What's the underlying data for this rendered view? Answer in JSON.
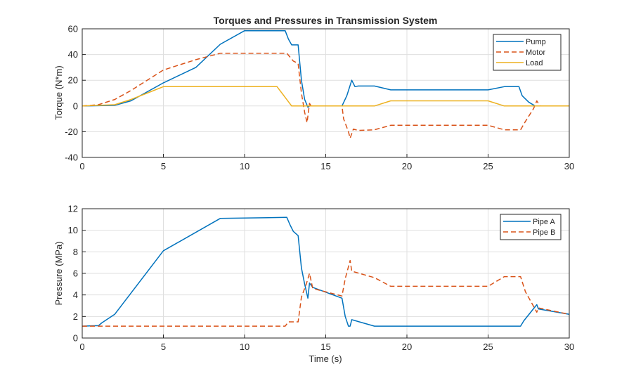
{
  "chart_data": [
    {
      "type": "line",
      "title": "Torques and Pressures in Transmission System",
      "xlabel": "",
      "ylabel": "Torque (N*m)",
      "xlim": [
        0,
        30
      ],
      "ylim": [
        -40,
        60
      ],
      "xticks": [
        0,
        5,
        10,
        15,
        20,
        25,
        30
      ],
      "yticks": [
        -40,
        -20,
        0,
        20,
        40,
        60
      ],
      "grid": true,
      "legend_position": "top-right",
      "series": [
        {
          "name": "Pump",
          "color": "#0072BD",
          "style": "solid",
          "x": [
            0,
            2,
            3,
            5,
            7,
            8.5,
            10,
            12.5,
            12.7,
            12.9,
            13.3,
            13.5,
            13.7,
            13.9,
            14,
            16,
            16.3,
            16.6,
            16.8,
            17,
            18,
            19,
            25,
            26,
            26.9,
            27.1,
            27.5,
            27.9,
            30
          ],
          "y": [
            0,
            0.5,
            4,
            18,
            30,
            48,
            58.5,
            58.5,
            52,
            47.5,
            47.5,
            20,
            5,
            -1,
            0,
            0,
            8,
            20,
            15,
            15.5,
            15.5,
            12.5,
            12.5,
            15,
            15,
            8,
            3,
            0,
            0
          ]
        },
        {
          "name": "Motor",
          "color": "#D95319",
          "style": "dashed",
          "x": [
            0,
            1,
            2,
            3,
            5,
            7,
            8.5,
            12.6,
            13,
            13.3,
            13.5,
            13.7,
            13.85,
            14,
            14.1,
            16,
            16.1,
            16.4,
            16.5,
            16.7,
            17,
            18,
            19,
            25,
            26,
            27,
            27.3,
            27.8,
            28,
            28.2,
            30
          ],
          "y": [
            0,
            1,
            5,
            12,
            28,
            36,
            41,
            41,
            35,
            33,
            10,
            -5,
            -13,
            2,
            0,
            0,
            -10,
            -20,
            -25,
            -18,
            -19,
            -18.5,
            -15,
            -15,
            -18.5,
            -18.5,
            -12,
            -2,
            4,
            0,
            0
          ]
        },
        {
          "name": "Load",
          "color": "#EDB120",
          "style": "solid",
          "x": [
            0,
            2,
            3,
            4,
            5,
            12,
            12.9,
            18,
            19,
            25,
            26,
            30
          ],
          "y": [
            0,
            1,
            5,
            10,
            15,
            15,
            0,
            0,
            4,
            4,
            0,
            0
          ]
        }
      ]
    },
    {
      "type": "line",
      "title": "",
      "xlabel": "Time (s)",
      "ylabel": "Pressure (MPa)",
      "xlim": [
        0,
        30
      ],
      "ylim": [
        0,
        12
      ],
      "xticks": [
        0,
        5,
        10,
        15,
        20,
        25,
        30
      ],
      "yticks": [
        0,
        2,
        4,
        6,
        8,
        10,
        12
      ],
      "grid": true,
      "legend_position": "top-right",
      "series": [
        {
          "name": "Pipe A",
          "color": "#0072BD",
          "style": "solid",
          "x": [
            0,
            1,
            1.2,
            2,
            5,
            8.5,
            12.6,
            12.8,
            13,
            13.3,
            13.5,
            13.7,
            13.9,
            14,
            14.2,
            16,
            16.2,
            16.4,
            16.5,
            16.6,
            18,
            27,
            27.2,
            28,
            28.1,
            30
          ],
          "y": [
            1.1,
            1.15,
            1.4,
            2.2,
            8.1,
            11.1,
            11.2,
            10.5,
            9.9,
            9.5,
            6.5,
            5,
            3.7,
            5.1,
            4.7,
            3.7,
            2,
            1.1,
            1.1,
            1.7,
            1.1,
            1.1,
            1.6,
            3.1,
            2.7,
            2.2
          ]
        },
        {
          "name": "Pipe B",
          "color": "#D95319",
          "style": "dashed",
          "x": [
            0,
            12.5,
            12.7,
            13.3,
            13.5,
            13.8,
            14,
            14.2,
            16,
            16.2,
            16.5,
            16.6,
            18,
            19,
            25,
            26,
            27,
            27.3,
            28,
            28.1,
            30
          ],
          "y": [
            1.1,
            1.1,
            1.5,
            1.5,
            3.8,
            5,
            6,
            4.6,
            3.9,
            5.5,
            7.2,
            6.2,
            5.6,
            4.8,
            4.8,
            5.7,
            5.7,
            4.3,
            2.4,
            2.8,
            2.2
          ]
        }
      ]
    }
  ]
}
